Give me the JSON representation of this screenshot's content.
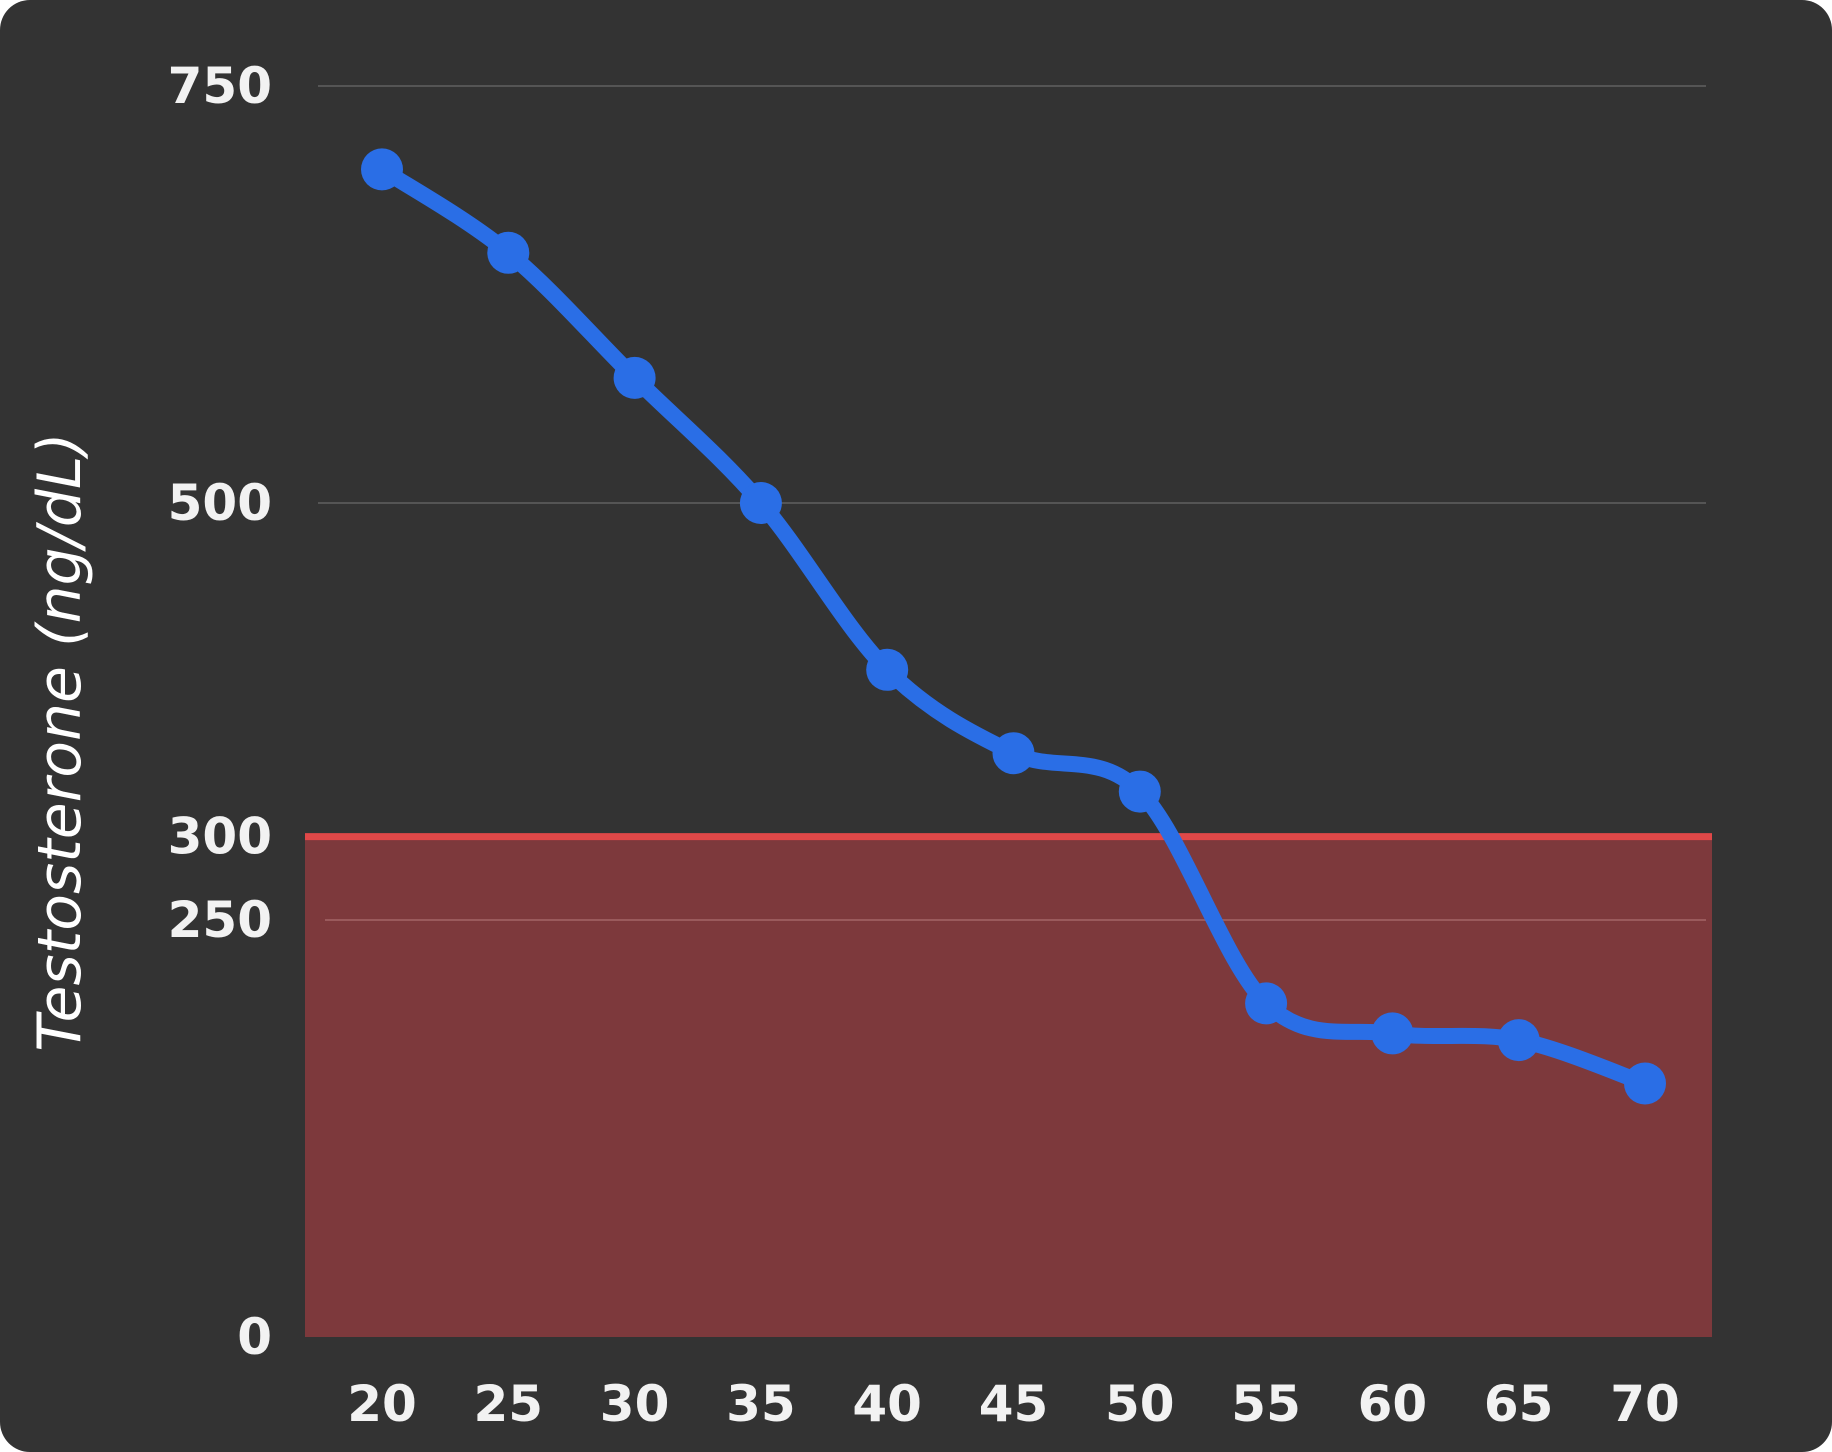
{
  "chart_data": {
    "type": "line",
    "title": "",
    "xlabel": "",
    "ylabel": "Testosterone (ng/dL)",
    "x": [
      20,
      25,
      30,
      35,
      40,
      45,
      50,
      55,
      60,
      65,
      70
    ],
    "xlim": [
      20,
      70
    ],
    "ylim": [
      0,
      750
    ],
    "y_ticks": [
      0,
      250,
      300,
      500,
      750
    ],
    "x_tick_labels": [
      "20",
      "25",
      "30",
      "35",
      "40",
      "45",
      "50",
      "55",
      "60",
      "65",
      "70"
    ],
    "y_tick_labels": [
      "0",
      "250",
      "300",
      "500",
      "750"
    ],
    "series": [
      {
        "values": [
          700,
          650,
          575,
          500,
          400,
          350,
          327,
          200,
          182,
          178,
          152
        ],
        "color": "#2a6ee6"
      }
    ],
    "shaded_region": {
      "y_from": 0,
      "y_to": 300,
      "fill_color": "#7d393c",
      "line_color": "#e04848"
    },
    "grid": true,
    "gridline_values": [
      250,
      500,
      750
    ],
    "legend": "none",
    "background_color": "#333333",
    "gridline_color": "#555555",
    "text_color": "#f2f2f2"
  }
}
